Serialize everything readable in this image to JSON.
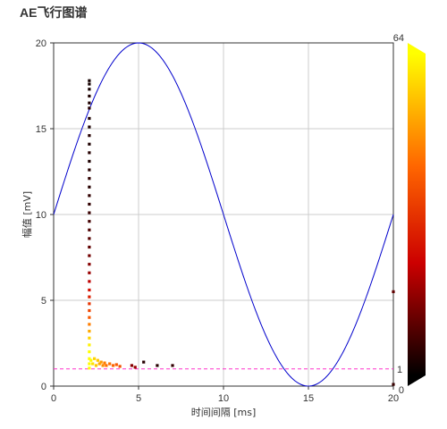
{
  "title": "AE飞行图谱",
  "chart_data": {
    "type": "scatter",
    "xlabel": "时间间隔 [ms]",
    "ylabel": "幅值 [mV]",
    "xlim": [
      0,
      20
    ],
    "ylim": [
      0,
      20
    ],
    "xticks": [
      "0",
      "5",
      "10",
      "15",
      "20"
    ],
    "yticks": [
      "0",
      "5",
      "10",
      "15",
      "20"
    ],
    "grid": true,
    "reference_sine": {
      "amplitude": 10,
      "offset": 10,
      "period": 20,
      "peak_x": 5,
      "color": "#0000cc"
    },
    "threshold": {
      "y": 1,
      "label": "1",
      "color": "#ff33cc"
    },
    "colorbar": {
      "min": 0,
      "max": 64,
      "min_label": "0",
      "max_label": "64",
      "colors": [
        "#000000",
        "#cc0000",
        "#ff6600",
        "#ffff00"
      ]
    },
    "points": [
      {
        "x": 2.1,
        "y": 17.8,
        "c": 2
      },
      {
        "x": 2.1,
        "y": 17.6,
        "c": 2
      },
      {
        "x": 2.1,
        "y": 17.3,
        "c": 2
      },
      {
        "x": 2.1,
        "y": 16.9,
        "c": 3
      },
      {
        "x": 2.1,
        "y": 16.5,
        "c": 3
      },
      {
        "x": 2.1,
        "y": 16.2,
        "c": 4
      },
      {
        "x": 2.1,
        "y": 15.6,
        "c": 3
      },
      {
        "x": 2.1,
        "y": 15.1,
        "c": 3
      },
      {
        "x": 2.1,
        "y": 14.6,
        "c": 4
      },
      {
        "x": 2.1,
        "y": 14.1,
        "c": 3
      },
      {
        "x": 2.1,
        "y": 13.6,
        "c": 4
      },
      {
        "x": 2.1,
        "y": 13.1,
        "c": 3
      },
      {
        "x": 2.1,
        "y": 12.6,
        "c": 4
      },
      {
        "x": 2.1,
        "y": 12.1,
        "c": 5
      },
      {
        "x": 2.1,
        "y": 11.6,
        "c": 4
      },
      {
        "x": 2.1,
        "y": 11.1,
        "c": 5
      },
      {
        "x": 2.1,
        "y": 10.6,
        "c": 5
      },
      {
        "x": 2.1,
        "y": 10.1,
        "c": 6
      },
      {
        "x": 2.1,
        "y": 9.6,
        "c": 7
      },
      {
        "x": 2.1,
        "y": 9.1,
        "c": 8
      },
      {
        "x": 2.1,
        "y": 8.6,
        "c": 9
      },
      {
        "x": 2.1,
        "y": 8.1,
        "c": 10
      },
      {
        "x": 2.1,
        "y": 7.6,
        "c": 12
      },
      {
        "x": 2.1,
        "y": 7.1,
        "c": 14
      },
      {
        "x": 2.1,
        "y": 6.6,
        "c": 16
      },
      {
        "x": 2.1,
        "y": 6.1,
        "c": 20
      },
      {
        "x": 2.1,
        "y": 5.6,
        "c": 24
      },
      {
        "x": 2.1,
        "y": 5.2,
        "c": 28
      },
      {
        "x": 2.1,
        "y": 4.8,
        "c": 32
      },
      {
        "x": 2.1,
        "y": 4.4,
        "c": 36
      },
      {
        "x": 2.1,
        "y": 4.0,
        "c": 40
      },
      {
        "x": 2.1,
        "y": 3.6,
        "c": 46
      },
      {
        "x": 2.1,
        "y": 3.2,
        "c": 52
      },
      {
        "x": 2.1,
        "y": 2.8,
        "c": 58
      },
      {
        "x": 2.1,
        "y": 2.4,
        "c": 62
      },
      {
        "x": 2.1,
        "y": 2.0,
        "c": 64
      },
      {
        "x": 2.1,
        "y": 1.6,
        "c": 64
      },
      {
        "x": 2.1,
        "y": 1.3,
        "c": 64
      },
      {
        "x": 2.1,
        "y": 1.05,
        "c": 64
      },
      {
        "x": 2.2,
        "y": 1.5,
        "c": 64
      },
      {
        "x": 2.3,
        "y": 1.3,
        "c": 60
      },
      {
        "x": 2.4,
        "y": 1.6,
        "c": 58
      },
      {
        "x": 2.5,
        "y": 1.2,
        "c": 56
      },
      {
        "x": 2.6,
        "y": 1.5,
        "c": 56
      },
      {
        "x": 2.7,
        "y": 1.3,
        "c": 52
      },
      {
        "x": 2.8,
        "y": 1.4,
        "c": 50
      },
      {
        "x": 2.9,
        "y": 1.2,
        "c": 48
      },
      {
        "x": 3.0,
        "y": 1.35,
        "c": 46
      },
      {
        "x": 3.1,
        "y": 1.2,
        "c": 44
      },
      {
        "x": 3.3,
        "y": 1.3,
        "c": 44
      },
      {
        "x": 3.5,
        "y": 1.2,
        "c": 42
      },
      {
        "x": 3.7,
        "y": 1.25,
        "c": 40
      },
      {
        "x": 3.9,
        "y": 1.15,
        "c": 38
      },
      {
        "x": 4.6,
        "y": 1.2,
        "c": 14
      },
      {
        "x": 4.8,
        "y": 1.1,
        "c": 16
      },
      {
        "x": 5.3,
        "y": 1.4,
        "c": 4
      },
      {
        "x": 6.1,
        "y": 1.2,
        "c": 4
      },
      {
        "x": 7.0,
        "y": 1.2,
        "c": 5
      },
      {
        "x": 20.0,
        "y": 5.5,
        "c": 10
      },
      {
        "x": 20.0,
        "y": 0.1,
        "c": 6
      }
    ]
  }
}
